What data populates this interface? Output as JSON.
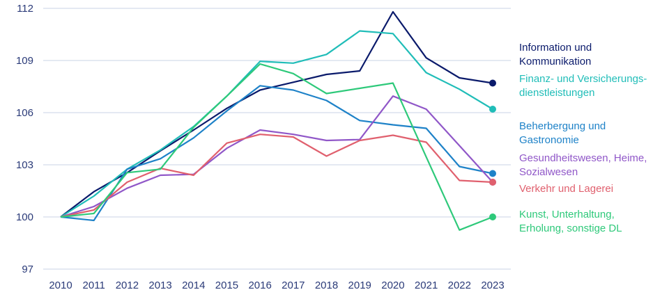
{
  "chart_data": {
    "type": "line",
    "title": "",
    "xlabel": "",
    "ylabel": "",
    "x": [
      2010,
      2011,
      2012,
      2013,
      2014,
      2015,
      2016,
      2017,
      2018,
      2019,
      2020,
      2021,
      2022,
      2023
    ],
    "ylim": [
      97,
      112
    ],
    "yticks": [
      97,
      100,
      103,
      106,
      109,
      112
    ],
    "grid": "horizontal",
    "legend": "right, labels at line ends",
    "series": [
      {
        "name": "Information und Kommunikation",
        "label_lines": [
          "Information und",
          "Kommunikation"
        ],
        "color": "#0a1a6b",
        "values": [
          100,
          101.45,
          102.55,
          103.8,
          105.0,
          106.25,
          107.3,
          107.75,
          108.2,
          108.4,
          111.8,
          109.15,
          108.0,
          107.7
        ]
      },
      {
        "name": "Finanz- und Versicherungsdienstleistungen",
        "label_lines": [
          "Finanz- und Versicherungs-",
          "dienstleistungen"
        ],
        "color": "#20bdb8",
        "values": [
          100,
          101.2,
          102.75,
          103.85,
          105.2,
          106.95,
          108.95,
          108.85,
          109.35,
          110.7,
          110.55,
          108.3,
          107.35,
          106.2
        ]
      },
      {
        "name": "Beherbergung und Gastronomie",
        "label_lines": [
          "Beherbergung und",
          "Gastronomie"
        ],
        "color": "#1e82c8",
        "values": [
          100,
          99.8,
          102.75,
          103.35,
          104.55,
          106.1,
          107.55,
          107.3,
          106.7,
          105.55,
          105.3,
          105.1,
          102.9,
          102.5
        ]
      },
      {
        "name": "Gesundheitswesen, Heime, Sozialwesen",
        "label_lines": [
          "Gesundheitswesen, Heime,",
          "Sozialwesen"
        ],
        "color": "#9057c8",
        "values": [
          100,
          100.6,
          101.65,
          102.4,
          102.45,
          103.95,
          105.0,
          104.75,
          104.4,
          104.45,
          106.95,
          106.2,
          104.1,
          102.0
        ]
      },
      {
        "name": "Verkehr und Lagerei",
        "label_lines": [
          "Verkehr und Lagerei"
        ],
        "color": "#e0606e",
        "values": [
          100,
          100.4,
          102.0,
          102.8,
          102.4,
          104.25,
          104.75,
          104.6,
          103.5,
          104.4,
          104.7,
          104.3,
          102.1,
          102.0
        ]
      },
      {
        "name": "Kunst, Unterhaltung, Erholung, sonstige DL",
        "label_lines": [
          "Kunst, Unterhaltung,",
          "Erholung, sonstige DL"
        ],
        "color": "#2ec97a",
        "values": [
          100,
          100.2,
          102.55,
          102.75,
          105.15,
          106.95,
          108.8,
          108.25,
          107.1,
          107.4,
          107.7,
          103.45,
          99.25,
          100.0
        ]
      }
    ]
  }
}
